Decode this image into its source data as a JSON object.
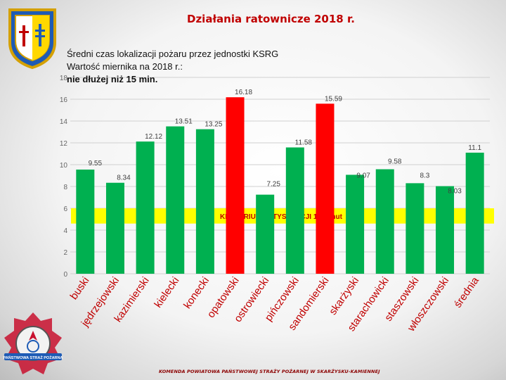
{
  "slide": {
    "title": "Działania ratownicze 2018 r.",
    "header_line1": "Średni czas lokalizacji pożaru przez jednostki KSRG",
    "header_line2": "Wartość miernika na 2018 r.:",
    "header_line3": "nie dłużej niż 15 min.",
    "footer": "KOMENDA POWIATOWA PAŃSTWOWEJ STRAŻY POŻARNEJ W SKARŻYSKU-KAMIENNEJ",
    "badge_text": "PAŃSTWOWA STRAŻ POŻARNA"
  },
  "colors": {
    "bar_green": "#00b050",
    "bar_red": "#ff0000",
    "criterion_band": "#ffff00",
    "criterion_text": "#c00000",
    "title_red": "#c00000"
  },
  "chart_data": {
    "type": "bar",
    "categories": [
      "buski",
      "jędrzejowski",
      "kazimierski",
      "kielecki",
      "konecki",
      "opatowski",
      "ostrowiecki",
      "pińczowski",
      "sandomierski",
      "skarżyski",
      "starachowicki",
      "staszowski",
      "włoszczowski",
      "średnia"
    ],
    "values": [
      9.55,
      8.34,
      12.12,
      13.51,
      13.25,
      16.18,
      7.25,
      11.58,
      15.59,
      9.07,
      9.58,
      8.3,
      8.03,
      11.1
    ],
    "value_labels": [
      "9.55",
      "8.34",
      "12.12",
      "13.51",
      "13.25",
      "16.18",
      "7.25",
      "11.58",
      "15.59",
      "9.07",
      "9.58",
      "8.3",
      "8.03",
      "11.1"
    ],
    "highlighted": [
      false,
      false,
      false,
      false,
      false,
      true,
      false,
      false,
      true,
      false,
      false,
      false,
      false,
      false
    ],
    "ylim": [
      0,
      18
    ],
    "yticks": [
      0,
      2,
      4,
      6,
      8,
      10,
      12,
      14,
      16,
      18
    ],
    "grid": true,
    "criterion": {
      "label": "KRYTERIUM SATYSFAKCJI 15 minut"
    }
  }
}
